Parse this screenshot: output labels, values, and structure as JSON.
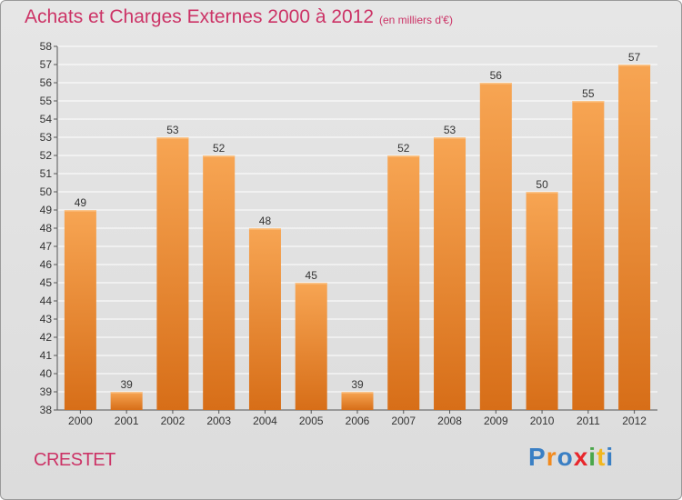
{
  "header": {
    "title": "Achats et Charges Externes 2000 à 2012",
    "subtitle": "(en milliers d'€)"
  },
  "footer": {
    "commune": "CRESTET",
    "logo_letters": [
      "P",
      "r",
      "o",
      "x",
      "i",
      "t",
      "i"
    ],
    "logo_colors": [
      "#3a7fc4",
      "#f28a1e",
      "#3a7fc4",
      "#e8262b",
      "#4aa64a",
      "#f2b71e",
      "#3a7fc4"
    ]
  },
  "colors": {
    "bar_light": "#f7a553",
    "bar_dark": "#d76e18",
    "title": "#cc3366",
    "grid": "#ffffff"
  },
  "chart_data": {
    "type": "bar",
    "title": "Achats et Charges Externes 2000 à 2012",
    "subtitle": "(en milliers d'€)",
    "xlabel": "",
    "ylabel": "",
    "categories": [
      "2000",
      "2001",
      "2002",
      "2003",
      "2004",
      "2005",
      "2006",
      "2007",
      "2008",
      "2009",
      "2010",
      "2011",
      "2012"
    ],
    "values": [
      49,
      39,
      53,
      52,
      48,
      45,
      39,
      52,
      53,
      56,
      50,
      55,
      57
    ],
    "ylim": [
      38,
      58
    ],
    "yticks": [
      38,
      39,
      40,
      41,
      42,
      43,
      44,
      45,
      46,
      47,
      48,
      49,
      50,
      51,
      52,
      53,
      54,
      55,
      56,
      57,
      58
    ],
    "grid": true,
    "legend": "none"
  }
}
